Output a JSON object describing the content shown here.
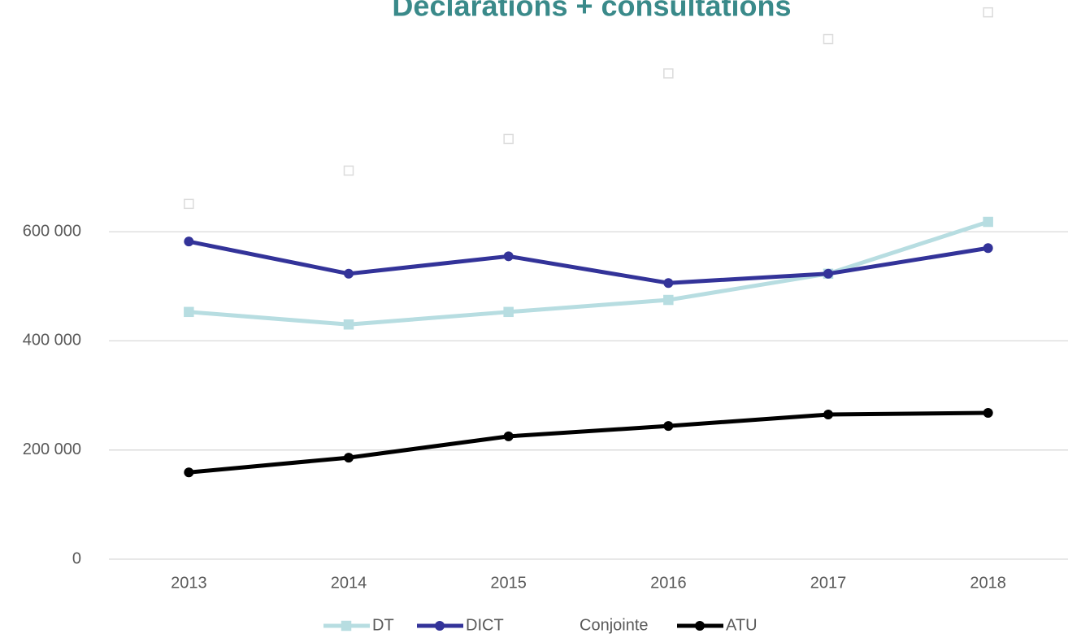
{
  "chart_data": {
    "type": "line",
    "title": "Declarations + consultations",
    "categories": [
      "2013",
      "2014",
      "2015",
      "2016",
      "2017",
      "2018"
    ],
    "series": [
      {
        "name": "DT",
        "color": "#b7dde1",
        "values": [
          453000,
          430000,
          453000,
          475000,
          523000,
          618000
        ]
      },
      {
        "name": "DICT",
        "color": "#333399",
        "values": [
          582000,
          523000,
          555000,
          506000,
          523000,
          570000
        ]
      },
      {
        "name": "Conjointe",
        "color": "#dcdcdc",
        "show_line": false,
        "values": [
          651000,
          712000,
          770000,
          890000,
          953000,
          1002000
        ]
      },
      {
        "name": "ATU",
        "color": "#000000",
        "values": [
          159000,
          186000,
          225000,
          244000,
          265000,
          268000
        ]
      }
    ],
    "ylim": [
      0,
      1000000
    ],
    "yticks": [
      0,
      {
        "value": 200000,
        "label": "200 000"
      },
      {
        "value": 400000,
        "label": "400 000"
      },
      {
        "value": 600000,
        "label": "600 000"
      }
    ],
    "grid": true,
    "legend": "bottom"
  }
}
